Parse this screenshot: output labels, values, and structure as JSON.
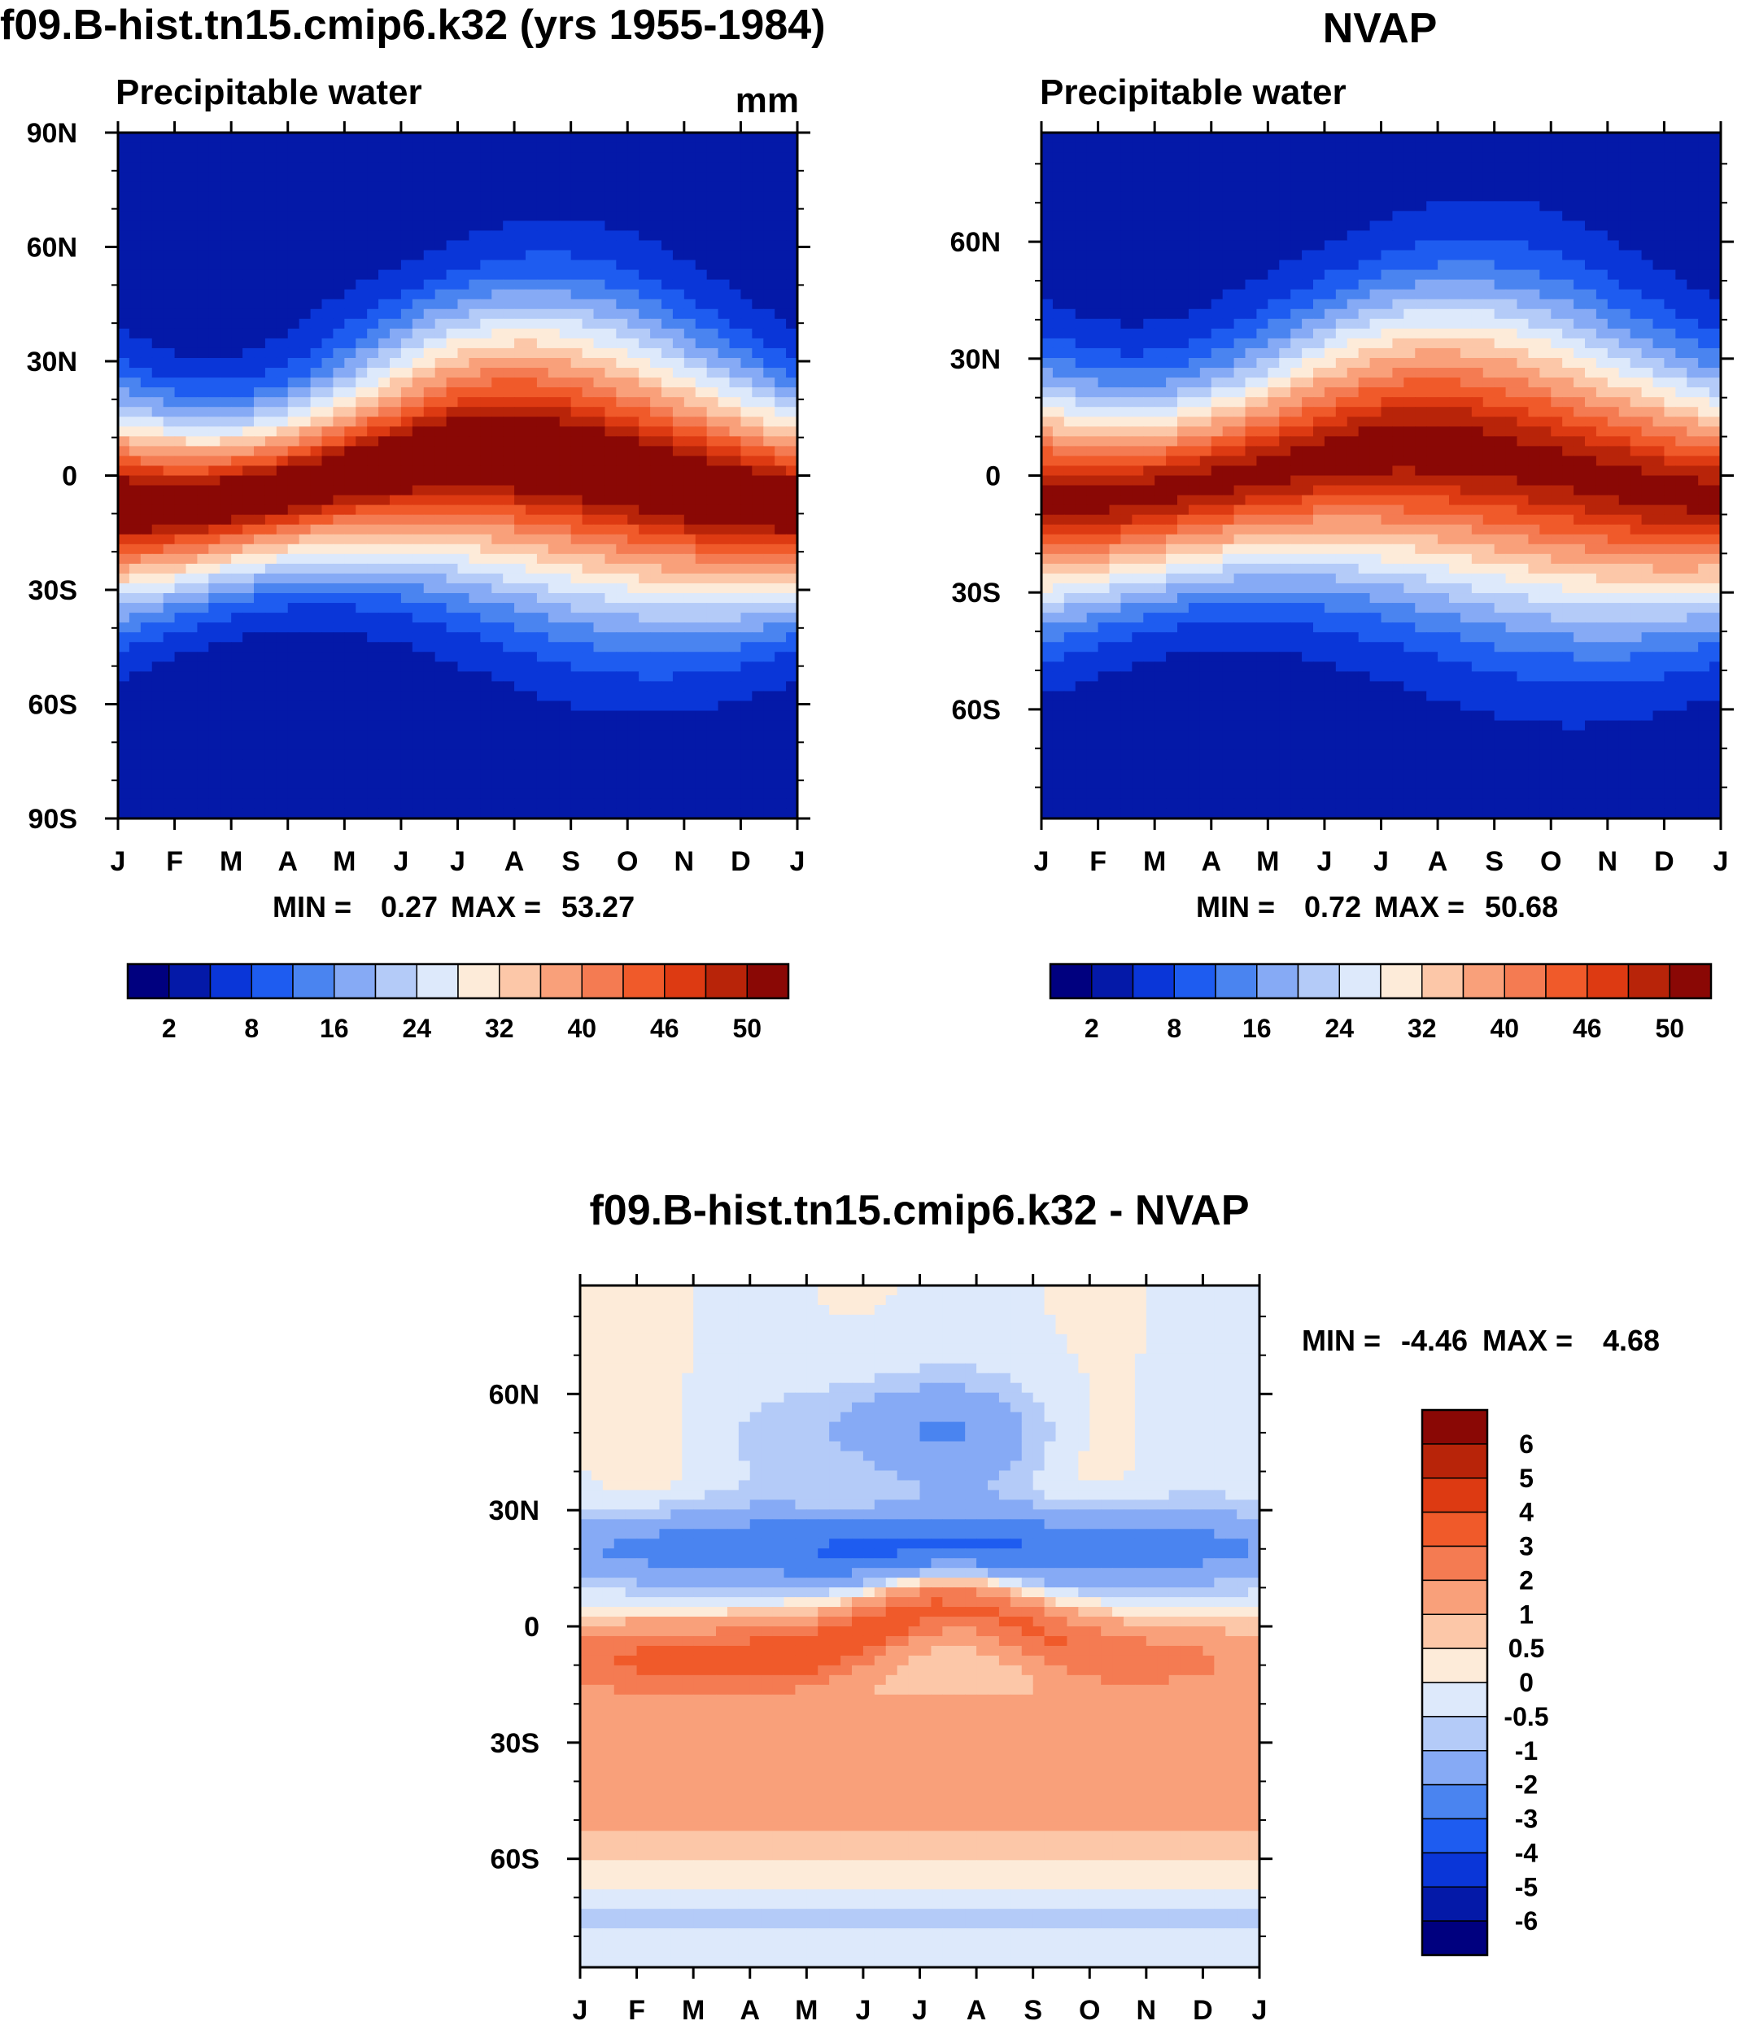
{
  "figure": {
    "title_left": "f09.B-hist.tn15.cmip6.k32 (yrs 1955-1984)",
    "title_right": "NVAP",
    "title_diff": "f09.B-hist.tn15.cmip6.k32 - NVAP"
  },
  "colors": {
    "main_scale": [
      "#00007f",
      "#0419a8",
      "#0a36d8",
      "#1e5cf0",
      "#4a84f0",
      "#86aaf5",
      "#b4cbf8",
      "#dde9fb",
      "#fdebd9",
      "#fcc7a8",
      "#f9a07a",
      "#f47b52",
      "#f05a2a",
      "#dd3a12",
      "#b82409",
      "#8a0805"
    ],
    "diff_scale": [
      "#00007f",
      "#0419a8",
      "#0a36d8",
      "#1e5cf0",
      "#4a84f0",
      "#86aaf5",
      "#b4cbf8",
      "#dde9fb",
      "#fdebd9",
      "#fcc7a8",
      "#f9a07a",
      "#f47b52",
      "#f05a2a",
      "#dd3a12",
      "#b82409",
      "#8a0805"
    ],
    "axis": "#000000"
  },
  "chart_data": [
    {
      "type": "heatmap",
      "id": "model",
      "title": "f09.B-hist.tn15.cmip6.k32 (yrs 1955-1984)",
      "subtitle_left": "Precipitable water",
      "units": "mm",
      "x": [
        "J",
        "F",
        "M",
        "A",
        "M",
        "J",
        "J",
        "A",
        "S",
        "O",
        "N",
        "D",
        "J"
      ],
      "y_ticks": [
        "90N",
        "60N",
        "30N",
        "0",
        "30S",
        "60S",
        "90S"
      ],
      "ylim": [
        -90,
        90
      ],
      "min_label": "MIN =",
      "min_value": "0.27",
      "max_label": "MAX =",
      "max_value": "53.27",
      "colorbar_labels": [
        "2",
        "8",
        "16",
        "24",
        "32",
        "40",
        "46",
        "50"
      ],
      "z_range": [
        0.27,
        53.27
      ]
    },
    {
      "type": "heatmap",
      "id": "obs",
      "title": "NVAP",
      "subtitle_left": "Precipitable water",
      "x": [
        "J",
        "F",
        "M",
        "A",
        "M",
        "J",
        "J",
        "A",
        "S",
        "O",
        "N",
        "D",
        "J"
      ],
      "y_ticks": [
        "60N",
        "30N",
        "0",
        "30S",
        "60S"
      ],
      "ylim": [
        -88,
        88
      ],
      "min_label": "MIN =",
      "min_value": "0.72",
      "max_label": "MAX =",
      "max_value": "50.68",
      "colorbar_labels": [
        "2",
        "8",
        "16",
        "24",
        "32",
        "40",
        "46",
        "50"
      ],
      "z_range": [
        0.72,
        50.68
      ]
    },
    {
      "type": "heatmap",
      "id": "diff",
      "title": "f09.B-hist.tn15.cmip6.k32 - NVAP",
      "x": [
        "J",
        "F",
        "M",
        "A",
        "M",
        "J",
        "J",
        "A",
        "S",
        "O",
        "N",
        "D",
        "J"
      ],
      "y_ticks": [
        "60N",
        "30N",
        "0",
        "30S",
        "60S"
      ],
      "ylim": [
        -88,
        88
      ],
      "min_label": "MIN =",
      "min_value": "-4.46",
      "max_label": "MAX =",
      "max_value": "4.68",
      "colorbar_labels": [
        "6",
        "5",
        "4",
        "3",
        "2",
        "1",
        "0.5",
        "0",
        "-0.5",
        "-1",
        "-2",
        "-3",
        "-4",
        "-5",
        "-6"
      ],
      "z_range": [
        -4.46,
        4.68
      ]
    }
  ]
}
